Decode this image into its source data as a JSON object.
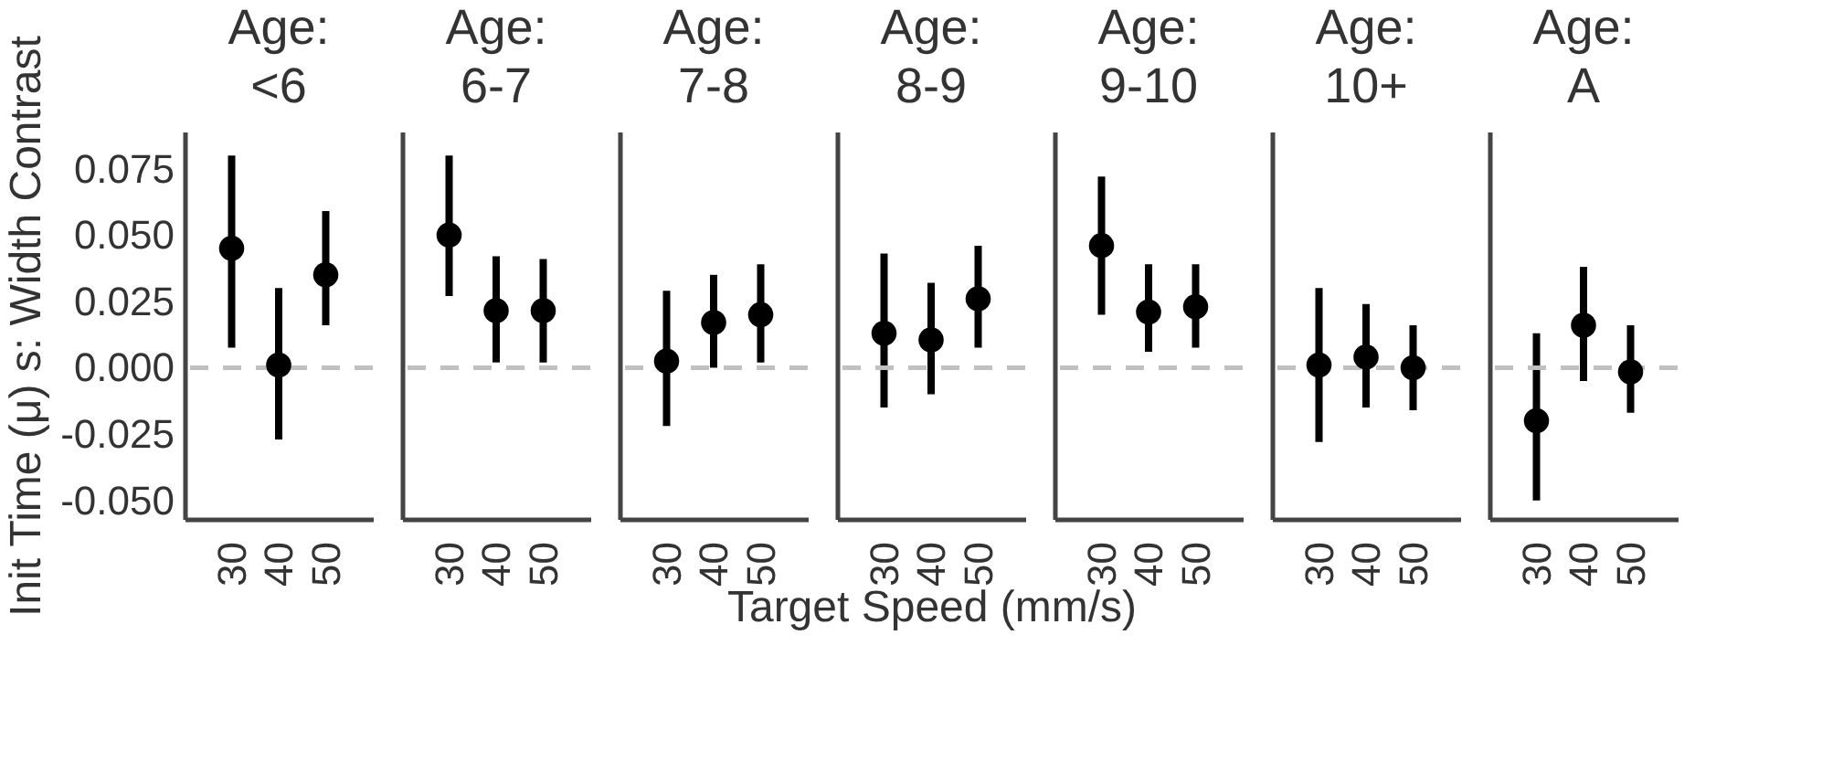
{
  "chart_data": [
    {
      "type": "scatter",
      "title": "Age:\n<6",
      "ylabel": "Init Time (μ) s: Width Contrast",
      "categories": [
        "30",
        "40",
        "50"
      ],
      "values": [
        0.045,
        0.001,
        0.035
      ],
      "errors": [
        [
          0.0076,
          0.08
        ],
        [
          -0.027,
          0.03
        ],
        [
          0.016,
          0.059
        ]
      ],
      "color": "#000000",
      "marker": "circle",
      "grid": false,
      "ylim": [
        -0.057,
        0.089
      ],
      "yticks": [
        {
          "value": -0.05,
          "label": "-0.050"
        },
        {
          "value": -0.025,
          "label": "-0.025"
        },
        {
          "value": 0,
          "label": "0.000"
        },
        {
          "value": 0.025,
          "label": "0.025"
        },
        {
          "value": 0.05,
          "label": "0.050"
        },
        {
          "value": 0.075,
          "label": "0.075"
        }
      ],
      "ref_lines": [
        {
          "axis": "y",
          "value": 0,
          "color": "#c0c0c0",
          "line_style": "dashed"
        }
      ]
    },
    {
      "type": "scatter",
      "title": "Age:\n6-7",
      "categories": [
        "30",
        "40",
        "50"
      ],
      "values": [
        0.05,
        0.0215,
        0.0215
      ],
      "errors": [
        [
          0.027,
          0.08
        ],
        [
          0.002,
          0.042
        ],
        [
          0.002,
          0.041
        ]
      ],
      "color": "#000000",
      "marker": "circle",
      "grid": false,
      "ylim": [
        -0.057,
        0.089
      ],
      "tick_labels": "x",
      "ref_lines": [
        {
          "axis": "y",
          "value": 0,
          "color": "#c0c0c0",
          "line_style": "dashed"
        }
      ]
    },
    {
      "type": "scatter",
      "title": "Age:\n7-8",
      "categories": [
        "30",
        "40",
        "50"
      ],
      "values": [
        0.0025,
        0.017,
        0.02
      ],
      "errors": [
        [
          -0.022,
          0.029
        ],
        [
          0,
          0.035
        ],
        [
          0.002,
          0.039
        ]
      ],
      "color": "#000000",
      "marker": "circle",
      "grid": false,
      "ylim": [
        -0.057,
        0.089
      ],
      "tick_labels": "x",
      "ref_lines": [
        {
          "axis": "y",
          "value": 0,
          "color": "#c0c0c0",
          "line_style": "dashed"
        }
      ]
    },
    {
      "type": "scatter",
      "title": "Age:\n8-9",
      "xlabel": "Target Speed (mm/s)",
      "categories": [
        "30",
        "40",
        "50"
      ],
      "values": [
        0.013,
        0.0105,
        0.026
      ],
      "errors": [
        [
          -0.015,
          0.043
        ],
        [
          -0.01,
          0.032
        ],
        [
          0.0076,
          0.046
        ]
      ],
      "color": "#000000",
      "marker": "circle",
      "grid": false,
      "ylim": [
        -0.057,
        0.089
      ],
      "tick_labels": "x",
      "ref_lines": [
        {
          "axis": "y",
          "value": 0,
          "color": "#c0c0c0",
          "line_style": "dashed"
        }
      ]
    },
    {
      "type": "scatter",
      "title": "Age:\n9-10",
      "categories": [
        "30",
        "40",
        "50"
      ],
      "values": [
        0.046,
        0.021,
        0.023
      ],
      "errors": [
        [
          0.02,
          0.072
        ],
        [
          0.006,
          0.039
        ],
        [
          0.0076,
          0.039
        ]
      ],
      "color": "#000000",
      "marker": "circle",
      "grid": false,
      "ylim": [
        -0.057,
        0.089
      ],
      "tick_labels": "x",
      "ref_lines": [
        {
          "axis": "y",
          "value": 0,
          "color": "#c0c0c0",
          "line_style": "dashed"
        }
      ]
    },
    {
      "type": "scatter",
      "title": "Age:\n10+",
      "categories": [
        "30",
        "40",
        "50"
      ],
      "values": [
        0.001,
        0.004,
        0
      ],
      "errors": [
        [
          -0.028,
          0.03
        ],
        [
          -0.015,
          0.024
        ],
        [
          -0.016,
          0.016
        ]
      ],
      "color": "#000000",
      "marker": "circle",
      "grid": false,
      "ylim": [
        -0.057,
        0.089
      ],
      "tick_labels": "x",
      "ref_lines": [
        {
          "axis": "y",
          "value": 0,
          "color": "#c0c0c0",
          "line_style": "dashed"
        }
      ]
    },
    {
      "type": "scatter",
      "title": "Age:\nA",
      "categories": [
        "30",
        "40",
        "50"
      ],
      "values": [
        -0.02,
        0.016,
        -0.0016
      ],
      "errors": [
        [
          -0.05,
          0.013
        ],
        [
          -0.005,
          0.038
        ],
        [
          -0.017,
          0.016
        ]
      ],
      "color": "#000000",
      "marker": "circle",
      "grid": false,
      "ylim": [
        -0.057,
        0.089
      ],
      "tick_labels": "x",
      "ref_lines": [
        {
          "axis": "y",
          "value": 0,
          "color": "#c0c0c0",
          "line_style": "dashed"
        }
      ]
    }
  ]
}
